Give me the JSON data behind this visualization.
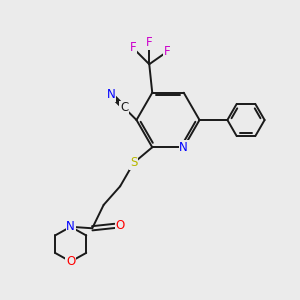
{
  "background_color": "#ebebeb",
  "bond_color": "#1a1a1a",
  "atom_colors": {
    "N": "#0000ff",
    "O": "#ff0000",
    "S": "#b8b800",
    "F": "#cc00cc",
    "C": "#1a1a1a"
  },
  "figsize": [
    3.0,
    3.0
  ],
  "dpi": 100,
  "lw": 1.4,
  "fs": 8.5
}
